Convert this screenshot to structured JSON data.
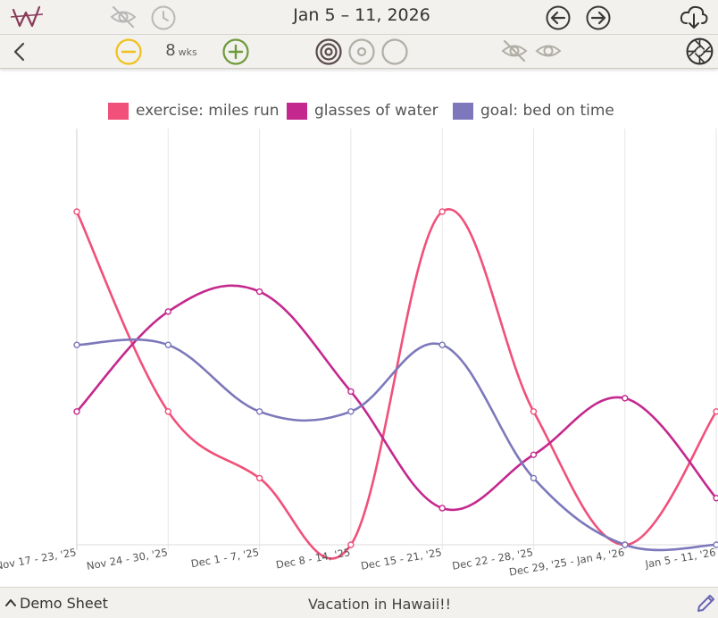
{
  "header": {
    "date_range": "Jan 5 – 11, 2026",
    "weeks_value": "8",
    "weeks_unit": "wks"
  },
  "icons": {
    "logo": "w-logo-icon",
    "hide": "eye-slash-icon",
    "history": "clock-icon",
    "prev": "arrow-left-circle-icon",
    "next": "arrow-right-circle-icon",
    "download": "cloud-download-icon",
    "back": "chevron-left-icon",
    "zoom_out": "minus-circle-icon",
    "zoom_in": "plus-circle-icon",
    "target_full": "target-icon",
    "target_half": "circle-dot-icon",
    "target_empty": "circle-icon",
    "hide_series": "eye-slash-icon",
    "show_series": "eye-icon",
    "aperture": "aperture-icon",
    "edit": "pencil-icon"
  },
  "colors": {
    "exercise": "#f0507a",
    "water": "#c4288e",
    "goal": "#7c78bb",
    "zoom_out": "#f2c01c",
    "zoom_in": "#6f9a3c",
    "logo": "#8a3a5a"
  },
  "chart_data": {
    "type": "line",
    "categories": [
      "Nov 17 - 23, '25",
      "Nov 24 - 30, '25",
      "Dec 1 - 7, '25",
      "Dec 8 - 14, '25",
      "Dec 15 - 21, '25",
      "Dec 22 - 28, '25",
      "Dec 29, '25 - Jan 4, '26",
      "Jan 5 - 11, '26"
    ],
    "series": [
      {
        "name": "exercise: miles run",
        "color": "#f0507a",
        "values": [
          5,
          2,
          1,
          0,
          5,
          2,
          0,
          2
        ]
      },
      {
        "name": "glasses of water",
        "color": "#c4288e",
        "values": [
          2,
          3.5,
          3.8,
          2.3,
          0.55,
          1.35,
          2.2,
          0.7
        ]
      },
      {
        "name": "goal: bed on time",
        "color": "#7c78bb",
        "values": [
          3,
          3,
          2,
          2,
          3,
          1,
          0,
          0
        ]
      }
    ],
    "ylim": [
      0,
      5
    ],
    "grid": "vertical",
    "legend": "top-center"
  },
  "footer": {
    "sheet_label": "Demo Sheet",
    "note": "Vacation in Hawaii!!"
  }
}
